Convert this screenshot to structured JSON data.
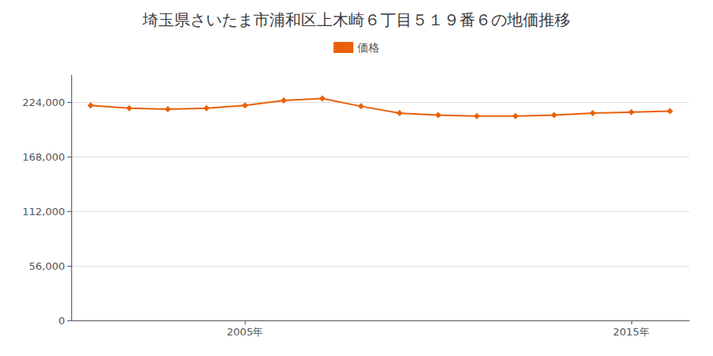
{
  "chart_data": {
    "type": "line",
    "title": "埼玉県さいたま市浦和区上木崎６丁目５１９番６の地価推移",
    "x": [
      2001,
      2002,
      2003,
      2004,
      2005,
      2006,
      2007,
      2008,
      2009,
      2010,
      2011,
      2012,
      2013,
      2014,
      2015,
      2016
    ],
    "series": [
      {
        "name": "価格",
        "color": "#E8610A",
        "values": [
          221000,
          218000,
          217000,
          218000,
          221000,
          226000,
          228000,
          220000,
          213000,
          211000,
          210000,
          210000,
          211000,
          213000,
          214000,
          215000
        ]
      }
    ],
    "xlim": [
      2000.5,
      2016.5
    ],
    "xticks": [
      {
        "value": 2005,
        "label": "2005年"
      },
      {
        "value": 2015,
        "label": "2015年"
      }
    ],
    "ylim": [
      0,
      252000
    ],
    "yticks": [
      0,
      {
        "value": 56000,
        "label": "56,000"
      },
      {
        "value": 112000,
        "label": "112,000"
      },
      {
        "value": 168000,
        "label": "168,000"
      },
      {
        "value": 224000,
        "label": "224,000"
      }
    ],
    "grid": true,
    "legend": "top",
    "marker": "diamond"
  }
}
